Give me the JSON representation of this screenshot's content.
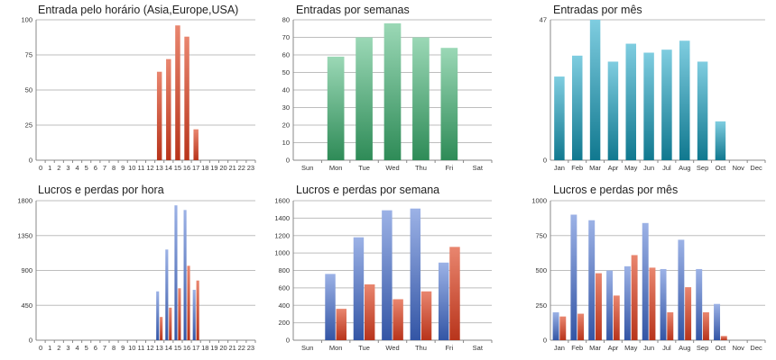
{
  "colors": {
    "red_top": "#e9866f",
    "red_bottom": "#b8341b",
    "green_top": "#9bd8b6",
    "green_bottom": "#2e8b57",
    "teal_top": "#7fcde0",
    "teal_bottom": "#10788f",
    "blue_top": "#9cb2e6",
    "blue_bottom": "#3355a5",
    "grid": "#bdbdbd",
    "axis": "#888888"
  },
  "chart_data": [
    {
      "type": "bar",
      "title": "Entrada pelo horário (Asia,Europe,USA)",
      "categories": [
        "0",
        "1",
        "2",
        "3",
        "4",
        "5",
        "6",
        "7",
        "8",
        "9",
        "10",
        "11",
        "12",
        "13",
        "14",
        "15",
        "16",
        "17",
        "18",
        "19",
        "20",
        "21",
        "22",
        "23"
      ],
      "series": [
        {
          "color": "red",
          "values": [
            0,
            0,
            0,
            0,
            0,
            0,
            0,
            0,
            0,
            0,
            0,
            0,
            0,
            63,
            72,
            96,
            88,
            22,
            0,
            0,
            0,
            0,
            0,
            0
          ]
        }
      ],
      "ylim": [
        0,
        100
      ],
      "yticks": [
        "0",
        "25",
        "50",
        "75",
        "100"
      ],
      "grid": true
    },
    {
      "type": "bar",
      "title": "Entradas por semanas",
      "categories": [
        "Sun",
        "Mon",
        "Tue",
        "Wed",
        "Thu",
        "Fri",
        "Sat"
      ],
      "series": [
        {
          "color": "green",
          "values": [
            0,
            59,
            70,
            78,
            70,
            64,
            0
          ]
        }
      ],
      "ylim": [
        0,
        80
      ],
      "yticks": [
        "0",
        "10",
        "20",
        "30",
        "40",
        "50",
        "60",
        "70",
        "80"
      ],
      "grid": true
    },
    {
      "type": "bar",
      "title": "Entradas por mês",
      "categories": [
        "Jan",
        "Feb",
        "Mar",
        "Apr",
        "May",
        "Jun",
        "Jul",
        "Aug",
        "Sep",
        "Oct",
        "Nov",
        "Dec"
      ],
      "series": [
        {
          "color": "teal",
          "values": [
            28,
            35,
            47,
            33,
            39,
            36,
            37,
            40,
            33,
            13,
            0,
            0
          ]
        }
      ],
      "ylim": [
        0,
        47
      ],
      "yticks": [
        "0",
        "47"
      ],
      "grid": true
    },
    {
      "type": "bar",
      "title": "Lucros e perdas por hora",
      "categories": [
        "0",
        "1",
        "2",
        "3",
        "4",
        "5",
        "6",
        "7",
        "8",
        "9",
        "10",
        "11",
        "12",
        "13",
        "14",
        "15",
        "16",
        "17",
        "18",
        "19",
        "20",
        "21",
        "22",
        "23"
      ],
      "series": [
        {
          "color": "blue",
          "values": [
            0,
            0,
            0,
            0,
            0,
            0,
            0,
            0,
            0,
            0,
            0,
            0,
            0,
            630,
            1170,
            1740,
            1680,
            650,
            0,
            0,
            0,
            0,
            0,
            0
          ]
        },
        {
          "color": "red",
          "values": [
            0,
            0,
            0,
            0,
            0,
            0,
            0,
            0,
            0,
            0,
            0,
            0,
            0,
            300,
            420,
            670,
            960,
            770,
            0,
            0,
            0,
            0,
            0,
            0
          ]
        }
      ],
      "ylim": [
        0,
        1800
      ],
      "yticks": [
        "0",
        "450",
        "900",
        "1350",
        "1800"
      ],
      "grid": true
    },
    {
      "type": "bar",
      "title": "Lucros e perdas por semana",
      "categories": [
        "Sun",
        "Mon",
        "Tue",
        "Wed",
        "Thu",
        "Fri",
        "Sat"
      ],
      "series": [
        {
          "color": "blue",
          "values": [
            0,
            760,
            1180,
            1490,
            1510,
            890,
            0
          ]
        },
        {
          "color": "red",
          "values": [
            0,
            360,
            640,
            470,
            560,
            1070,
            0
          ]
        }
      ],
      "ylim": [
        0,
        1600
      ],
      "yticks": [
        "0",
        "200",
        "400",
        "600",
        "800",
        "1000",
        "1200",
        "1400",
        "1600"
      ],
      "grid": true
    },
    {
      "type": "bar",
      "title": "Lucros e perdas por mês",
      "categories": [
        "Jan",
        "Feb",
        "Mar",
        "Apr",
        "May",
        "Jun",
        "Jul",
        "Aug",
        "Sep",
        "Oct",
        "Nov",
        "Dec"
      ],
      "series": [
        {
          "color": "blue",
          "values": [
            200,
            900,
            860,
            500,
            530,
            840,
            510,
            720,
            510,
            260,
            0,
            0
          ]
        },
        {
          "color": "red",
          "values": [
            170,
            190,
            480,
            320,
            610,
            520,
            200,
            380,
            200,
            30,
            0,
            0
          ]
        }
      ],
      "ylim": [
        0,
        1000
      ],
      "yticks": [
        "0",
        "250",
        "500",
        "750",
        "1000"
      ],
      "grid": true
    }
  ]
}
